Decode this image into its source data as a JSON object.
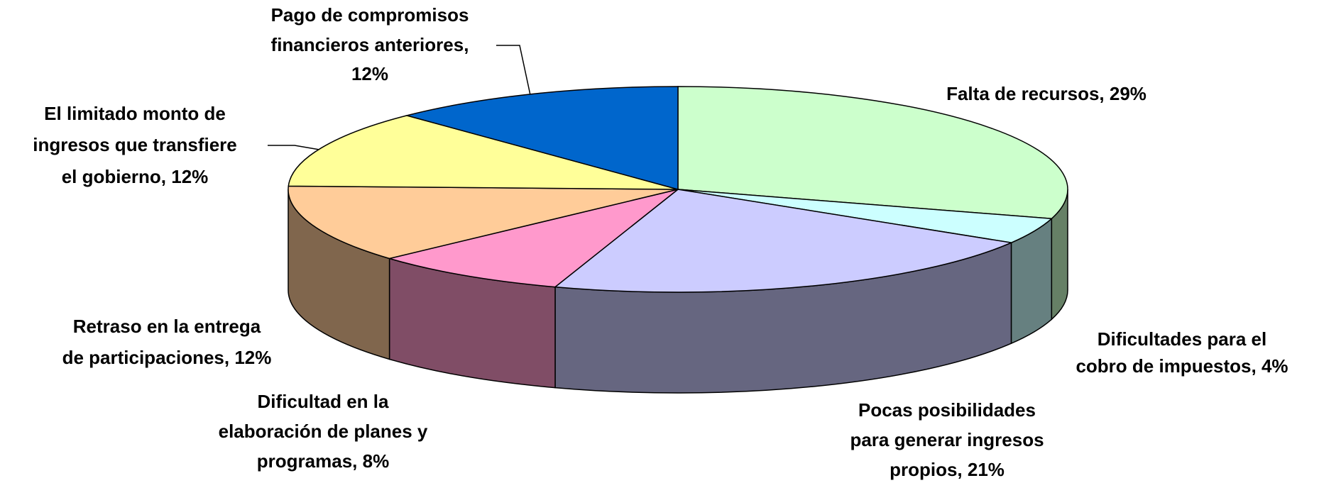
{
  "chart_data": {
    "type": "pie",
    "categories": [
      [
        "Falta de recursos, 29%"
      ],
      [
        "Dificultades para el",
        "cobro de impuestos, 4%"
      ],
      [
        "Pocas posibilidades",
        "para generar ingresos",
        "propios, 21%"
      ],
      [
        "Dificultad en la",
        "elaboración de planes y",
        "programas, 8%"
      ],
      [
        "Retraso en la entrega",
        "de participaciones, 12%"
      ],
      [
        "El limitado monto de",
        "ingresos que transfiere",
        "el gobierno, 12%"
      ],
      [
        "Pago de compromisos",
        "financieros anteriores,",
        "12%"
      ]
    ],
    "values": [
      29,
      4,
      21,
      8,
      12,
      12,
      12
    ],
    "colors": [
      "#CCFFCC",
      "#CCFFFF",
      "#CCCCFF",
      "#FF99CC",
      "#FFCC99",
      "#FFFF99",
      "#0066CC"
    ]
  }
}
